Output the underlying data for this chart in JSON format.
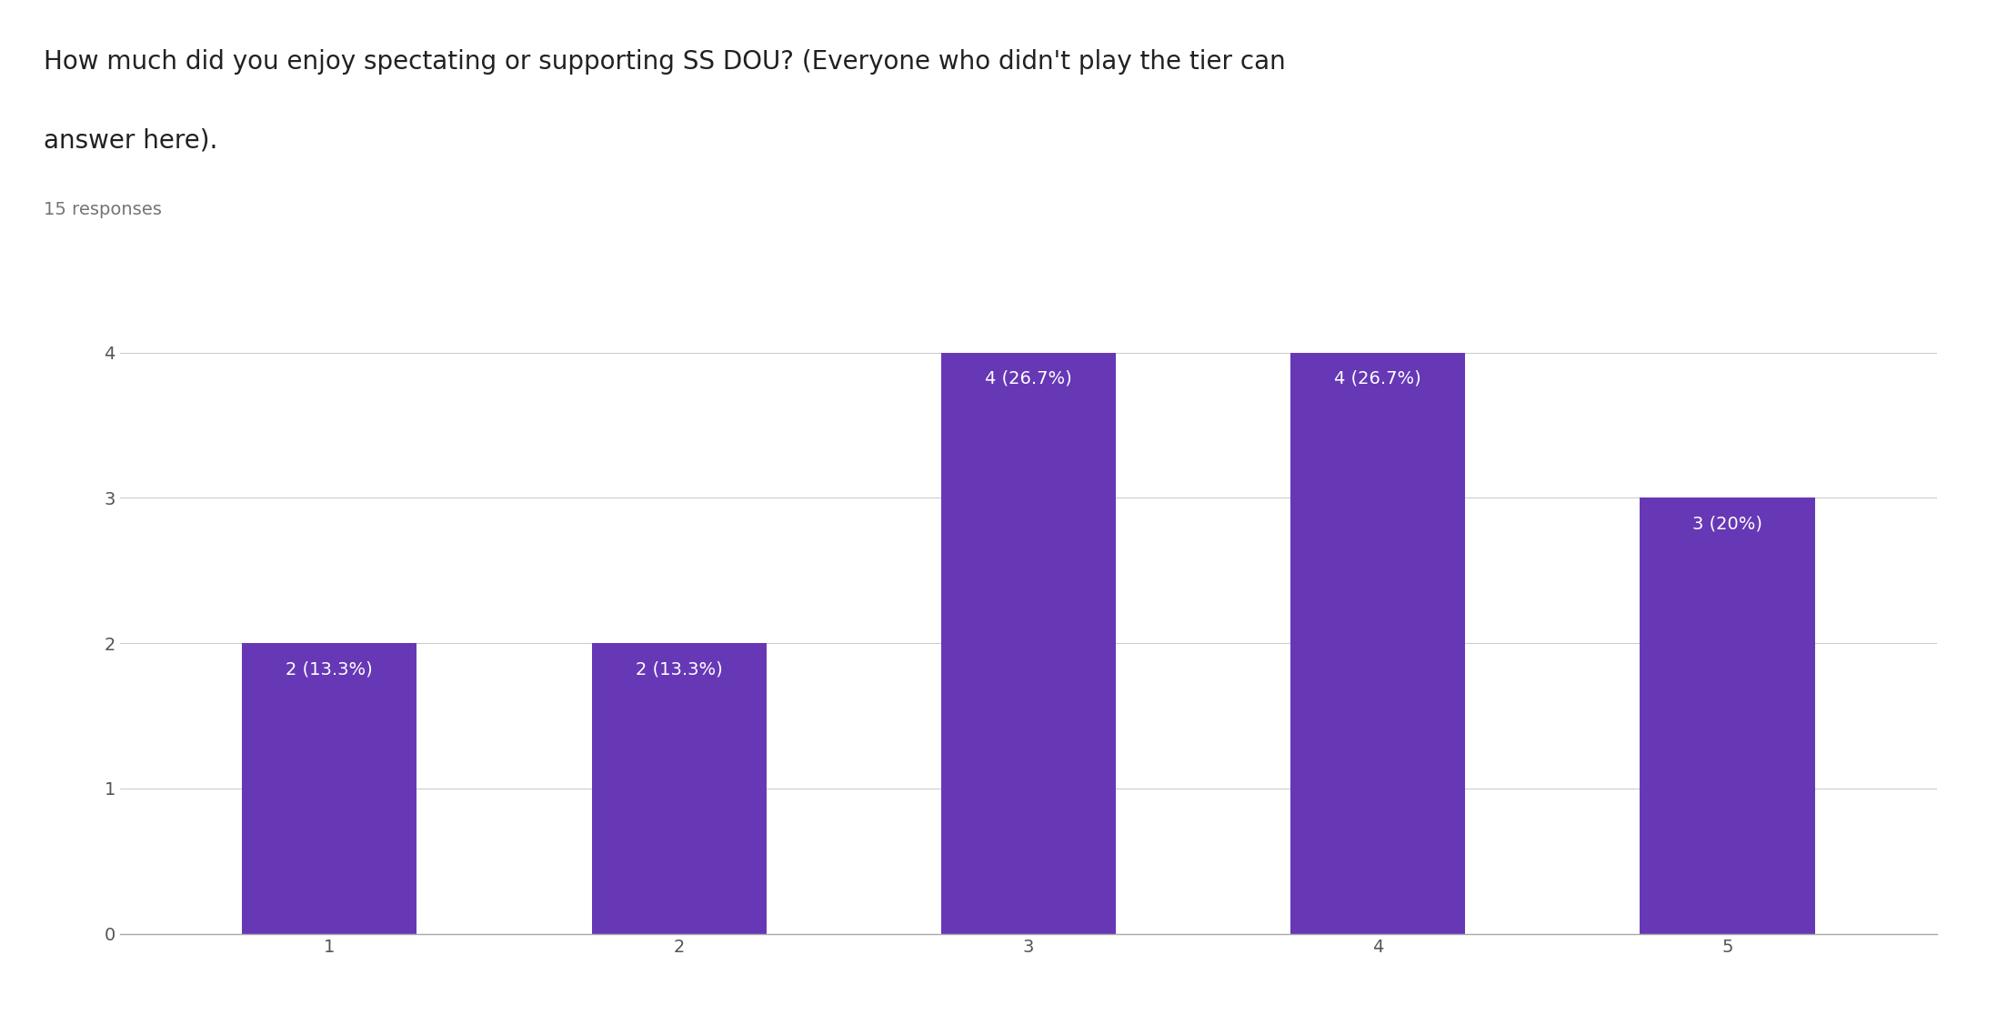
{
  "title_line1": "How much did you enjoy spectating or supporting SS DOU? (Everyone who didn't play the tier can",
  "title_line2": "answer here).",
  "subtitle": "15 responses",
  "categories": [
    1,
    2,
    3,
    4,
    5
  ],
  "values": [
    2,
    2,
    4,
    4,
    3
  ],
  "labels": [
    "2 (13.3%)",
    "2 (13.3%)",
    "4 (26.7%)",
    "4 (26.7%)",
    "3 (20%)"
  ],
  "bar_color": "#6638b6",
  "background_color": "#ffffff",
  "ylim": [
    0,
    4.4
  ],
  "yticks": [
    0,
    1,
    2,
    3,
    4
  ],
  "title_fontsize": 20,
  "subtitle_fontsize": 14,
  "tick_fontsize": 14,
  "bar_label_fontsize": 14,
  "bar_label_color": "#ffffff",
  "title_color": "#212121",
  "subtitle_color": "#757575",
  "tick_color": "#555555",
  "grid_color": "#cccccc",
  "spine_color": "#aaaaaa"
}
